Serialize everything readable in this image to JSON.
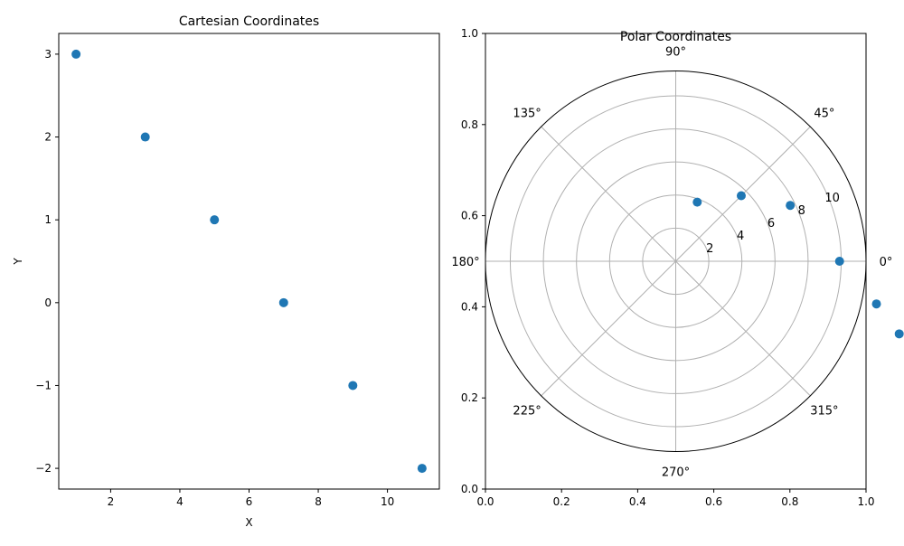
{
  "chart_data": [
    {
      "type": "scatter",
      "title": "Cartesian Coordinates",
      "xlabel": "X",
      "ylabel": "Y",
      "xlim": [
        0.5,
        11.5
      ],
      "ylim": [
        -2.25,
        3.25
      ],
      "x_ticks": [
        2,
        4,
        6,
        8,
        10
      ],
      "y_ticks": [
        3,
        2,
        1,
        0,
        -1,
        -2
      ],
      "x_tick_labels": [
        "2",
        "4",
        "6",
        "8",
        "10"
      ],
      "y_tick_labels": [
        "3",
        "2",
        "1",
        "0",
        "−1",
        "−2"
      ],
      "grid": false,
      "color": "#1f77b4",
      "x": [
        1,
        3,
        5,
        7,
        9,
        11
      ],
      "y": [
        3,
        2,
        1,
        0,
        -1,
        -2
      ]
    },
    {
      "type": "scatter",
      "projection": "polar",
      "title": "Polar Coordinates",
      "theta_deg": [
        70,
        45,
        26,
        0,
        -12,
        -18
      ],
      "r": [
        3.8,
        5.6,
        7.7,
        9.9,
        12.4,
        14.2
      ],
      "rmax": 11.5,
      "r_ticks": [
        2,
        4,
        6,
        8,
        10
      ],
      "r_tick_labels": [
        "2",
        "4",
        "6",
        "8",
        "10"
      ],
      "theta_ticks": [
        0,
        45,
        90,
        135,
        180,
        225,
        270,
        315
      ],
      "theta_tick_labels": [
        "0°",
        "45°",
        "90°",
        "135°",
        "180°",
        "225°",
        "270°",
        "315°"
      ],
      "grid": true,
      "color": "#1f77b4",
      "background_axis": {
        "xlim": [
          0,
          1
        ],
        "ylim": [
          0,
          1
        ],
        "x_ticks": [
          0,
          0.2,
          0.4,
          0.6,
          0.8,
          1.0
        ],
        "y_ticks": [
          0,
          0.2,
          0.4,
          0.6,
          0.8,
          1.0
        ],
        "x_tick_labels": [
          "0.0",
          "0.2",
          "0.4",
          "0.6",
          "0.8",
          "1.0"
        ],
        "y_tick_labels": [
          "0.0",
          "0.2",
          "0.4",
          "0.6",
          "0.8",
          "1.0"
        ]
      }
    }
  ]
}
